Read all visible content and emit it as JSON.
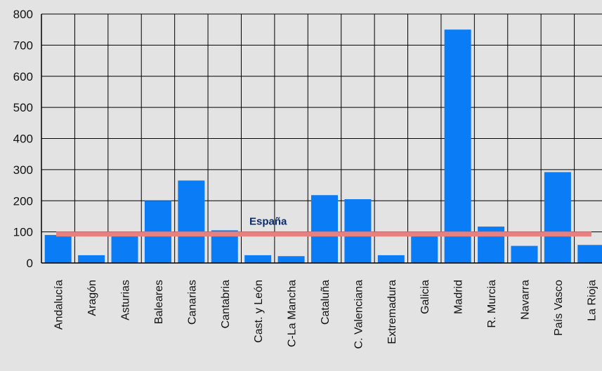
{
  "chart_data": {
    "type": "bar",
    "categories": [
      "Andalucía",
      "Aragón",
      "Asturias",
      "Baleares",
      "Canarias",
      "Cantabria",
      "Cast. y León",
      "C-La Mancha",
      "Cataluña",
      "C. Valenciana",
      "Extremadura",
      "Galicia",
      "Madrid",
      "R. Murcia",
      "Navarra",
      "País Vasco",
      "La Rioja"
    ],
    "values": [
      90,
      25,
      95,
      200,
      265,
      105,
      25,
      22,
      218,
      205,
      25,
      95,
      750,
      117,
      55,
      292,
      58
    ],
    "ylim": [
      0,
      800
    ],
    "yticks": [
      0,
      100,
      200,
      300,
      400,
      500,
      600,
      700,
      800
    ],
    "grid": true,
    "reference_line": {
      "label": "España",
      "value": 93,
      "color": "#e88080"
    },
    "colors": {
      "bar": "#0a7cf5",
      "background": "#e3e3e3",
      "grid": "#000000"
    }
  }
}
